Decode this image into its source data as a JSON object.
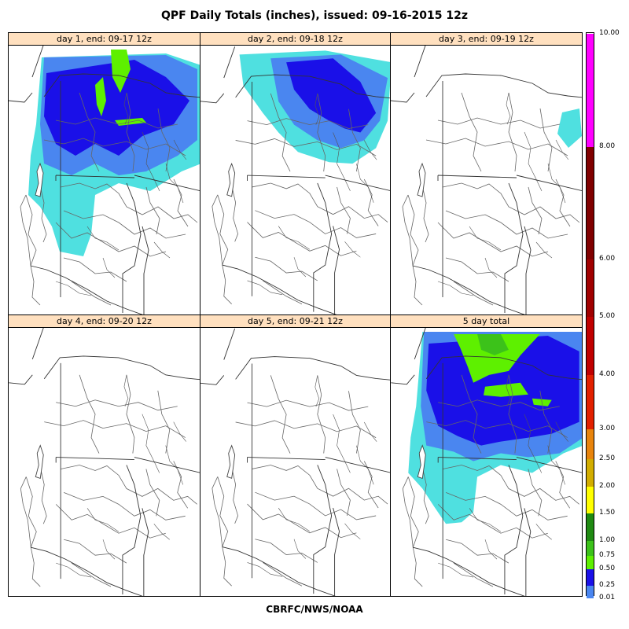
{
  "title": "QPF Daily Totals (inches),  issued: 09-16-2015 12z",
  "footer": "CBRFC/NWS/NOAA",
  "panels": [
    {
      "label": "day 1, end: 09-17 12z",
      "precip": "heavy"
    },
    {
      "label": "day 2, end: 09-18 12z",
      "precip": "north"
    },
    {
      "label": "day 3, end: 09-19 12z",
      "precip": "trace"
    },
    {
      "label": "day 4, end: 09-20 12z",
      "precip": "none"
    },
    {
      "label": "day 5, end: 09-21 12z",
      "precip": "none"
    },
    {
      "label": "5 day total",
      "precip": "total"
    }
  ],
  "legend": {
    "ticks": [
      "0.01",
      "0.25",
      "0.50",
      "0.75",
      "1.00",
      "1.50",
      "2.00",
      "2.50",
      "3.00",
      "4.00",
      "5.00",
      "6.00",
      "8.00",
      "10.00"
    ],
    "colors": [
      "#4fe0e0",
      "#4a86f0",
      "#1a10e8",
      "#5ef000",
      "#3cc21a",
      "#1f8a12",
      "#ffff00",
      "#d2ad00",
      "#e8840c",
      "#e22000",
      "#c00000",
      "#a00000",
      "#800000",
      "#ff00ff",
      "#7d3ed0"
    ]
  }
}
